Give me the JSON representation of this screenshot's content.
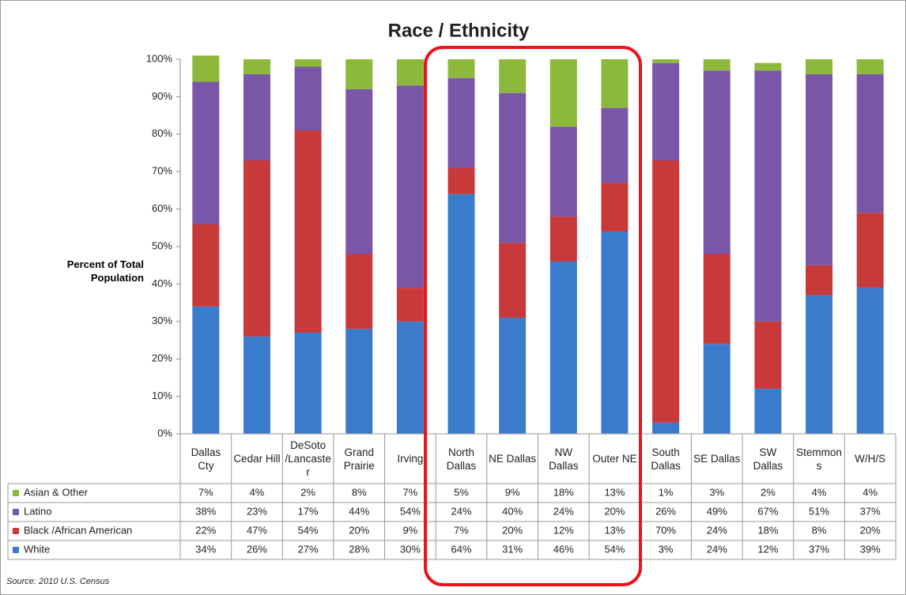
{
  "chart_data": {
    "type": "stacked_bar",
    "title": "Race / Ethnicity",
    "y_label": "Percent of Total Population",
    "source": "Source: 2010 U.S. Census",
    "categories": [
      "Dallas Cty",
      "Cedar Hill",
      "DeSoto /Lancaster",
      "Grand Prairie",
      "Irving",
      "North Dallas",
      "NE Dallas",
      "NW Dallas",
      "Outer NE",
      "South Dallas",
      "SE Dallas",
      "SW Dallas",
      "Stemmons",
      "W/H/S"
    ],
    "series": [
      {
        "name": "Asian & Other",
        "color": "#8cb83c",
        "values": [
          7,
          4,
          2,
          8,
          7,
          5,
          9,
          18,
          13,
          1,
          3,
          2,
          4,
          4
        ],
        "value_labels": [
          "7%",
          "4%",
          "2%",
          "8%",
          "7%",
          "5%",
          "9%",
          "18%",
          "13%",
          "1%",
          "3%",
          "2%",
          "4%",
          "4%"
        ]
      },
      {
        "name": "Latino",
        "color": "#7a56a8",
        "values": [
          38,
          23,
          17,
          44,
          54,
          24,
          40,
          24,
          20,
          26,
          49,
          67,
          51,
          37
        ],
        "value_labels": [
          "38%",
          "23%",
          "17%",
          "44%",
          "54%",
          "24%",
          "40%",
          "24%",
          "20%",
          "26%",
          "49%",
          "67%",
          "51%",
          "37%"
        ]
      },
      {
        "name": "Black /African American",
        "color": "#c8393a",
        "values": [
          22,
          47,
          54,
          20,
          9,
          7,
          20,
          12,
          13,
          70,
          24,
          18,
          8,
          20
        ],
        "value_labels": [
          "22%",
          "47%",
          "54%",
          "20%",
          "9%",
          "7%",
          "20%",
          "12%",
          "13%",
          "70%",
          "24%",
          "18%",
          "8%",
          "20%"
        ]
      },
      {
        "name": "White",
        "color": "#3b7bcb",
        "values": [
          34,
          26,
          27,
          28,
          30,
          64,
          31,
          46,
          54,
          3,
          24,
          12,
          37,
          39
        ],
        "value_labels": [
          "34%",
          "26%",
          "27%",
          "28%",
          "30%",
          "64%",
          "31%",
          "46%",
          "54%",
          "3%",
          "24%",
          "12%",
          "37%",
          "39%"
        ]
      }
    ],
    "ylim": [
      0,
      100
    ],
    "yticks": [
      {
        "value": 0,
        "label": "0%"
      },
      {
        "value": 10,
        "label": "10%"
      },
      {
        "value": 20,
        "label": "20%"
      },
      {
        "value": 30,
        "label": "30%"
      },
      {
        "value": 40,
        "label": "40%"
      },
      {
        "value": 50,
        "label": "50%"
      },
      {
        "value": 60,
        "label": "60%"
      },
      {
        "value": 70,
        "label": "70%"
      },
      {
        "value": 80,
        "label": "80%"
      },
      {
        "value": 90,
        "label": "90%"
      },
      {
        "value": 100,
        "label": "100%"
      }
    ],
    "grid": false
  }
}
